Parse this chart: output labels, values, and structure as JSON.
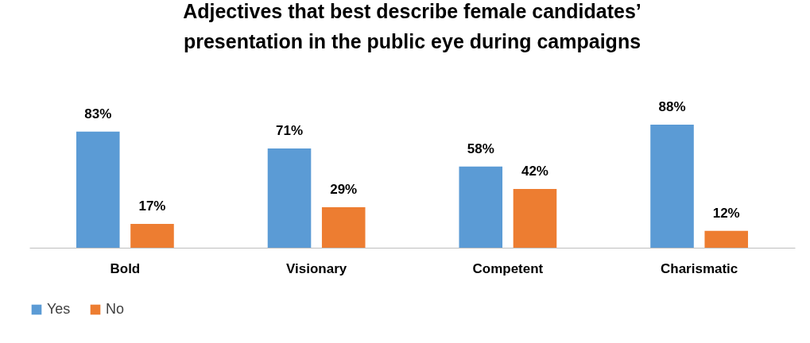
{
  "chart_data": {
    "type": "bar",
    "title": "Adjectives that best describe female candidates’ presentation in the public eye during campaigns",
    "categories": [
      "Bold",
      "Visionary",
      "Competent",
      "Charismatic"
    ],
    "series": [
      {
        "name": "Yes",
        "color": "#5b9bd5",
        "values": [
          83,
          71,
          58,
          88
        ],
        "value_labels": [
          "83%",
          "71%",
          "58%",
          "88%"
        ]
      },
      {
        "name": "No",
        "color": "#ed7d31",
        "values": [
          17,
          29,
          42,
          12
        ],
        "value_labels": [
          "17%",
          "29%",
          "42%",
          "12%"
        ]
      }
    ],
    "legend": "bottom",
    "grid": false
  }
}
